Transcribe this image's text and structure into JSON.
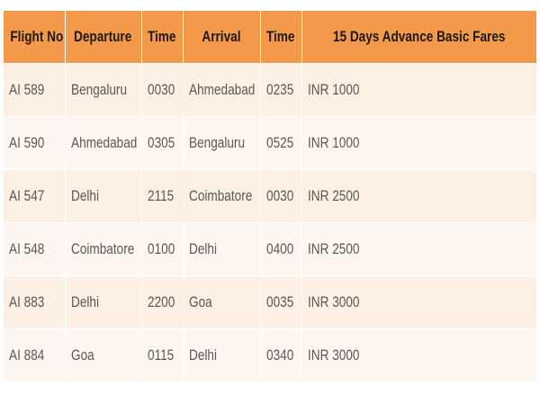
{
  "table": {
    "headers": [
      "Flight No",
      "Departure",
      "Time",
      "Arrival",
      "Time",
      "15 Days Advance Basic Fares"
    ],
    "rows": [
      [
        "AI 589",
        "Bengaluru",
        "0030",
        "Ahmedabad",
        "0235",
        "INR 1000"
      ],
      [
        "AI 590",
        "Ahmedabad",
        "0305",
        "Bengaluru",
        "0525",
        "INR 1000"
      ],
      [
        "AI 547",
        "Delhi",
        "2115",
        "Coimbatore",
        "0030",
        "INR 2500"
      ],
      [
        "AI 548",
        "Coimbatore",
        "0100",
        "Delhi",
        "0400",
        "INR 2500"
      ],
      [
        "AI 883",
        "Delhi",
        "2200",
        "Goa",
        "0035",
        "INR 3000"
      ],
      [
        "AI 884",
        "Goa",
        "0115",
        "Delhi",
        "0340",
        "INR 3000"
      ]
    ]
  },
  "colors": {
    "header_bg": "#f3994a",
    "row_odd": "#fdf0e4",
    "row_even": "#fef7f1"
  }
}
